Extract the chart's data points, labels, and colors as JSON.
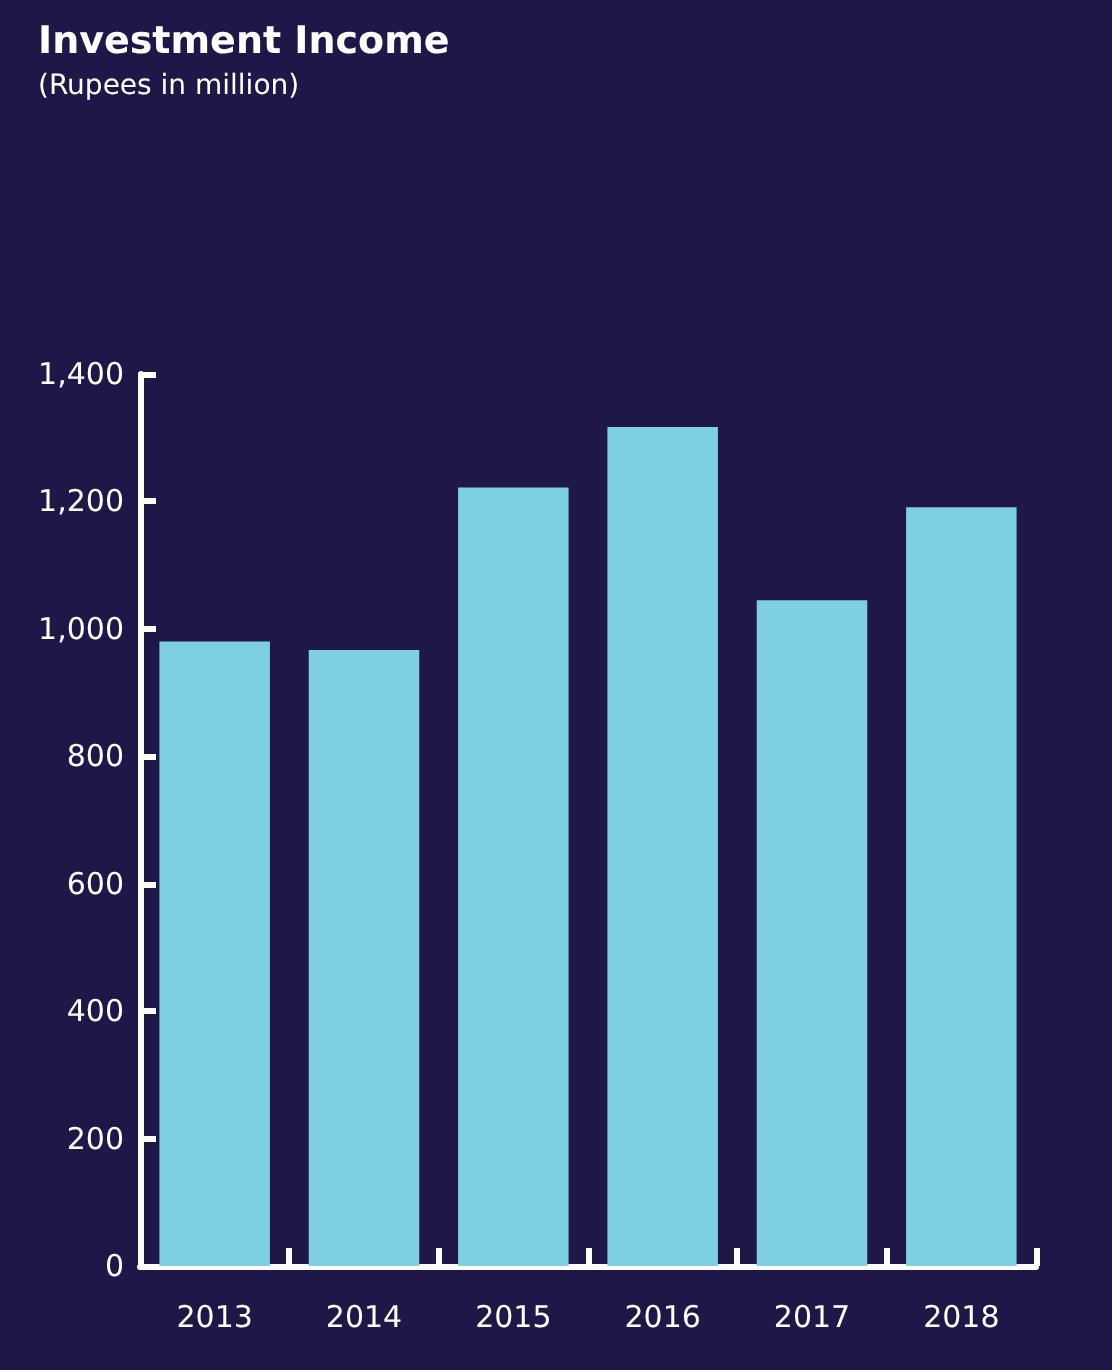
{
  "chart_data": {
    "type": "bar",
    "title": "Investment Income",
    "subtitle": "(Rupees in million)",
    "categories": [
      "2013",
      "2014",
      "2015",
      "2016",
      "2017",
      "2018"
    ],
    "values": [
      980,
      967,
      1222,
      1317,
      1045,
      1191
    ],
    "color": "#7ecfe2",
    "ylim": [
      0,
      1400
    ],
    "yticks": [
      0,
      200,
      400,
      600,
      800,
      {
        "value": 1000,
        "label": "1,000"
      },
      {
        "value": 1200,
        "label": "1,200"
      },
      {
        "value": 1400,
        "label": "1,400"
      }
    ],
    "grid": false
  }
}
